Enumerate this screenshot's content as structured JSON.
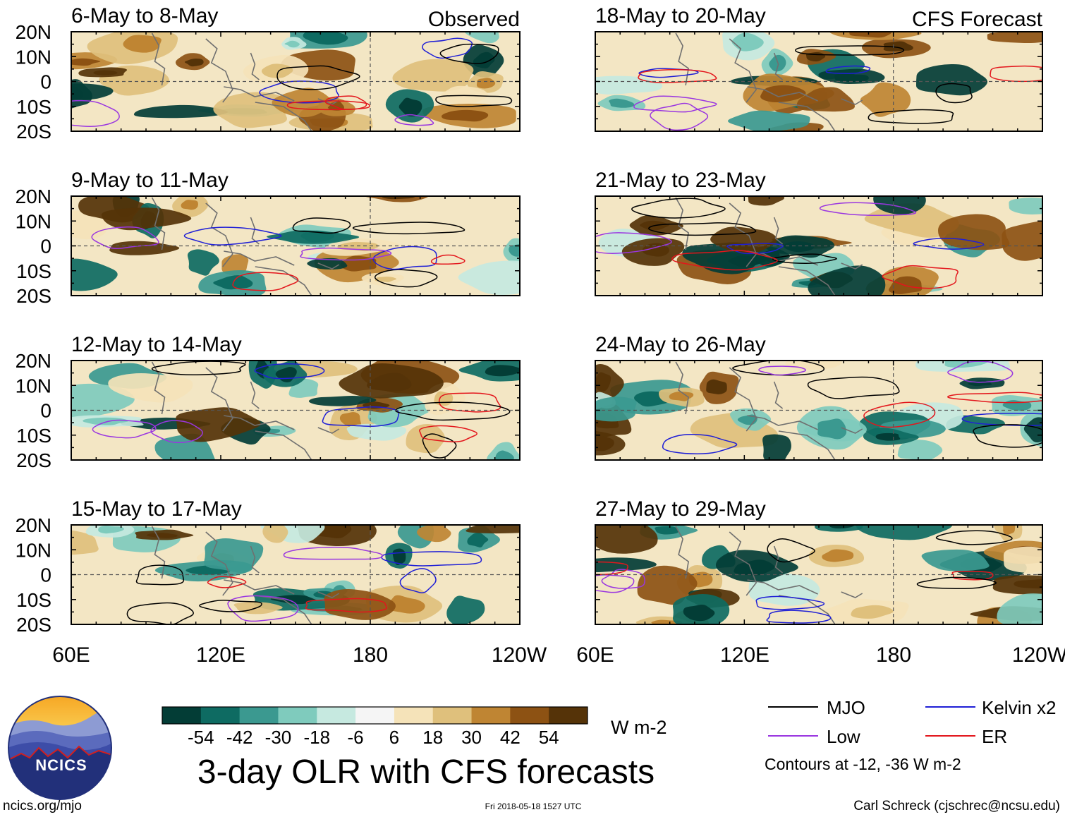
{
  "chart_data": {
    "type": "heatmap",
    "title": "3-day OLR with CFS forecasts",
    "column_headers": {
      "observed": "Observed",
      "forecast": "CFS Forecast"
    },
    "x_ticks": [
      "60E",
      "120E",
      "180",
      "120W"
    ],
    "y_ticks": [
      "20N",
      "10N",
      "0",
      "10S",
      "20S"
    ],
    "xlim_deg_east": [
      60,
      240
    ],
    "ylim_deg": [
      -20,
      20
    ],
    "periods": [
      {
        "label": "6-May to 8-May",
        "kind": "Observed"
      },
      {
        "label": "9-May to 11-May",
        "kind": "Observed"
      },
      {
        "label": "12-May to 14-May",
        "kind": "Observed"
      },
      {
        "label": "15-May to 17-May",
        "kind": "Observed"
      },
      {
        "label": "18-May to 20-May",
        "kind": "CFS Forecast"
      },
      {
        "label": "21-May to 23-May",
        "kind": "CFS Forecast"
      },
      {
        "label": "24-May to 26-May",
        "kind": "CFS Forecast"
      },
      {
        "label": "27-May to 29-May",
        "kind": "CFS Forecast"
      }
    ],
    "colorbar": {
      "labels": [
        "-54",
        "-42",
        "-30",
        "-18",
        "-6",
        "6",
        "18",
        "30",
        "42",
        "54"
      ],
      "colors": [
        "#033d36",
        "#0e6b62",
        "#3b9990",
        "#7fcbbd",
        "#c6e9e0",
        "#f5f5f5",
        "#f5e3b9",
        "#dfc07c",
        "#bf8533",
        "#8d5213",
        "#553308"
      ],
      "units": "W m-2"
    },
    "legend": [
      {
        "label": "MJO",
        "color": "#000000"
      },
      {
        "label": "Kelvin x2",
        "color": "#1f1fd6"
      },
      {
        "label": "Low",
        "color": "#9a36e0"
      },
      {
        "label": "ER",
        "color": "#e3161c"
      }
    ],
    "contour_note": "Contours at -12, -36 W m-2"
  },
  "footer": {
    "logo_text": "NCICS",
    "url": "ncics.org/mjo",
    "timestamp": "Fri 2018-05-18 1527 UTC",
    "credit": "Carl Schreck (cjschrec@ncsu.edu)"
  }
}
